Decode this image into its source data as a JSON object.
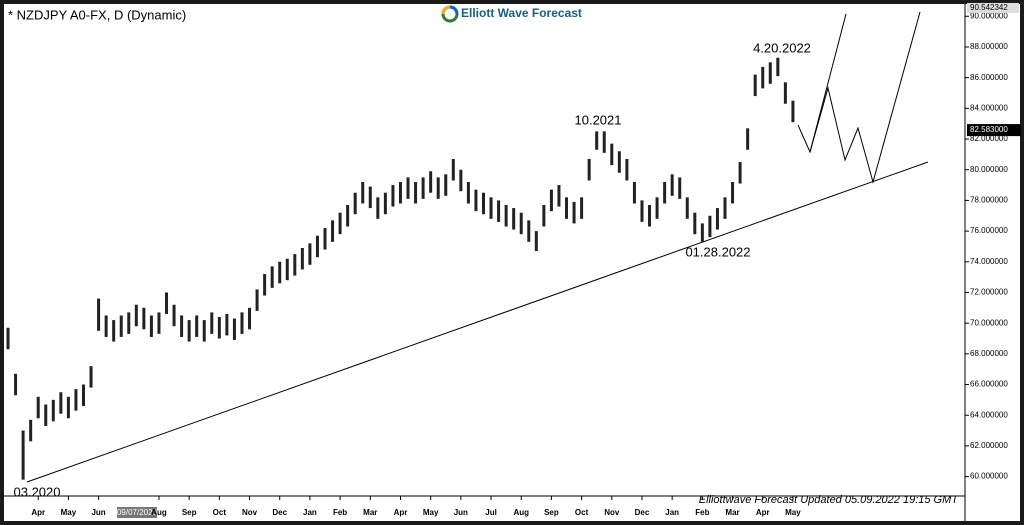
{
  "chart_data": {
    "type": "range-bar",
    "title": "* NZDJPY A0-FX, D (Dynamic)",
    "logo": "Elliott Wave Forecast",
    "footer": "Elliottwave Forecast Updated 05.09.2022 19:15 GMT",
    "annotations": [
      "4.20.2022",
      "10.2021",
      "01.28.2022",
      "03.2020"
    ],
    "cursor_date": "09/07/2020",
    "top_price": {
      "value": 90.542342,
      "label": "90.542342"
    },
    "last_price": {
      "value": 82.583,
      "label": "82.583000"
    },
    "color": "#222222",
    "xlim": [
      -0.1,
      31.7
    ],
    "ylim": [
      58.8,
      90.54
    ],
    "xticks": [
      {
        "value": 1,
        "label": "Apr"
      },
      {
        "value": 2,
        "label": "May"
      },
      {
        "value": 3,
        "label": "Jun"
      },
      {
        "value": 5,
        "label": "Aug"
      },
      {
        "value": 6,
        "label": "Sep"
      },
      {
        "value": 7,
        "label": "Oct"
      },
      {
        "value": 8,
        "label": "Nov"
      },
      {
        "value": 9,
        "label": "Dec"
      },
      {
        "value": 10,
        "label": "Jan"
      },
      {
        "value": 11,
        "label": "Feb"
      },
      {
        "value": 12,
        "label": "Mar"
      },
      {
        "value": 13,
        "label": "Apr"
      },
      {
        "value": 14,
        "label": "May"
      },
      {
        "value": 15,
        "label": "Jun"
      },
      {
        "value": 16,
        "label": "Jul"
      },
      {
        "value": 17,
        "label": "Aug"
      },
      {
        "value": 18,
        "label": "Sep"
      },
      {
        "value": 19,
        "label": "Oct"
      },
      {
        "value": 20,
        "label": "Nov"
      },
      {
        "value": 21,
        "label": "Dec"
      },
      {
        "value": 22,
        "label": "Jan"
      },
      {
        "value": 23,
        "label": "Feb"
      },
      {
        "value": 24,
        "label": "Mar"
      },
      {
        "value": 25,
        "label": "Apr"
      },
      {
        "value": 26,
        "label": "May"
      }
    ],
    "yticks": [
      {
        "value": 60,
        "label": "60.000000"
      },
      {
        "value": 62,
        "label": "62.000000"
      },
      {
        "value": 64,
        "label": "64.000000"
      },
      {
        "value": 66,
        "label": "66.000000"
      },
      {
        "value": 68,
        "label": "68.000000"
      },
      {
        "value": 70,
        "label": "70.000000"
      },
      {
        "value": 72,
        "label": "72.000000"
      },
      {
        "value": 74,
        "label": "74.000000"
      },
      {
        "value": 76,
        "label": "76.000000"
      },
      {
        "value": 78,
        "label": "78.000000"
      },
      {
        "value": 80,
        "label": "80.000000"
      },
      {
        "value": 82,
        "label": "82.000000"
      },
      {
        "value": 84,
        "label": "84.000000"
      },
      {
        "value": 86,
        "label": "86.000000"
      },
      {
        "value": 88,
        "label": "88.000000"
      },
      {
        "value": 90,
        "label": "90.000000"
      }
    ],
    "x": [
      0,
      0.25,
      0.5,
      0.75,
      1,
      1.25,
      1.5,
      1.75,
      2,
      2.25,
      2.5,
      2.75,
      3,
      3.25,
      3.5,
      3.75,
      4,
      4.25,
      4.5,
      4.75,
      5,
      5.25,
      5.5,
      5.75,
      6,
      6.25,
      6.5,
      6.75,
      7,
      7.25,
      7.5,
      7.75,
      8,
      8.25,
      8.5,
      8.75,
      9,
      9.25,
      9.5,
      9.75,
      10,
      10.25,
      10.5,
      10.75,
      11,
      11.25,
      11.5,
      11.75,
      12,
      12.25,
      12.5,
      12.75,
      13,
      13.25,
      13.5,
      13.75,
      14,
      14.25,
      14.5,
      14.75,
      15,
      15.25,
      15.5,
      15.75,
      16,
      16.25,
      16.5,
      16.75,
      17,
      17.25,
      17.5,
      17.75,
      18,
      18.25,
      18.5,
      18.75,
      19,
      19.25,
      19.5,
      19.75,
      20,
      20.25,
      20.5,
      20.75,
      21,
      21.25,
      21.5,
      21.75,
      22,
      22.25,
      22.5,
      22.75,
      23,
      23.25,
      23.5,
      23.75,
      24,
      24.25,
      24.5,
      24.75,
      25,
      25.25,
      25.5,
      25.75,
      26
    ],
    "high": [
      69.7,
      66.7,
      63.0,
      63.7,
      65.2,
      64.7,
      65.0,
      65.5,
      65.2,
      65.7,
      66.0,
      67.2,
      71.6,
      70.5,
      70.2,
      70.5,
      70.7,
      71.2,
      71.0,
      70.5,
      70.7,
      72.0,
      71.2,
      70.5,
      70.2,
      70.5,
      70.2,
      70.7,
      70.4,
      70.6,
      70.3,
      70.7,
      71.0,
      72.2,
      73.2,
      73.7,
      74.0,
      74.2,
      74.5,
      74.9,
      75.2,
      75.7,
      76.2,
      76.7,
      77.2,
      77.7,
      78.5,
      79.2,
      78.9,
      78.2,
      78.5,
      79.0,
      79.2,
      79.5,
      79.2,
      79.5,
      79.9,
      79.5,
      79.7,
      80.7,
      80.0,
      79.2,
      78.7,
      78.5,
      78.2,
      78.0,
      77.7,
      77.5,
      77.2,
      76.7,
      76.0,
      77.7,
      78.7,
      79.0,
      78.2,
      77.9,
      78.2,
      80.7,
      82.5,
      82.5,
      81.7,
      81.2,
      80.7,
      79.2,
      78.0,
      77.7,
      78.2,
      79.2,
      79.7,
      79.5,
      78.2,
      77.2,
      76.5,
      77.0,
      77.5,
      78.2,
      79.2,
      80.5,
      82.7,
      86.2,
      86.7,
      87.0,
      87.3,
      85.7,
      84.5
    ],
    "low": [
      68.3,
      65.3,
      59.8,
      62.3,
      63.8,
      63.3,
      63.6,
      64.1,
      63.8,
      64.3,
      64.6,
      65.8,
      69.5,
      69.1,
      68.8,
      69.1,
      69.3,
      69.8,
      69.6,
      69.1,
      69.3,
      70.6,
      69.8,
      69.1,
      68.8,
      69.1,
      68.8,
      69.3,
      69.0,
      69.2,
      68.9,
      69.3,
      69.6,
      70.8,
      71.8,
      72.3,
      72.6,
      72.8,
      73.1,
      73.5,
      73.8,
      74.3,
      74.8,
      75.3,
      75.8,
      76.3,
      77.1,
      77.8,
      77.5,
      76.8,
      77.1,
      77.6,
      77.8,
      78.1,
      77.8,
      78.1,
      78.5,
      78.1,
      78.3,
      79.3,
      78.6,
      77.8,
      77.3,
      77.1,
      76.8,
      76.6,
      76.3,
      76.1,
      75.8,
      75.3,
      74.7,
      76.3,
      77.3,
      77.6,
      76.8,
      76.5,
      76.8,
      79.3,
      81.3,
      81.1,
      80.3,
      79.8,
      79.3,
      77.8,
      76.6,
      76.3,
      76.8,
      77.8,
      78.3,
      78.1,
      76.8,
      75.8,
      75.3,
      75.6,
      76.1,
      76.8,
      77.8,
      79.1,
      81.3,
      84.8,
      85.3,
      85.6,
      86.1,
      84.3,
      83.1
    ]
  }
}
